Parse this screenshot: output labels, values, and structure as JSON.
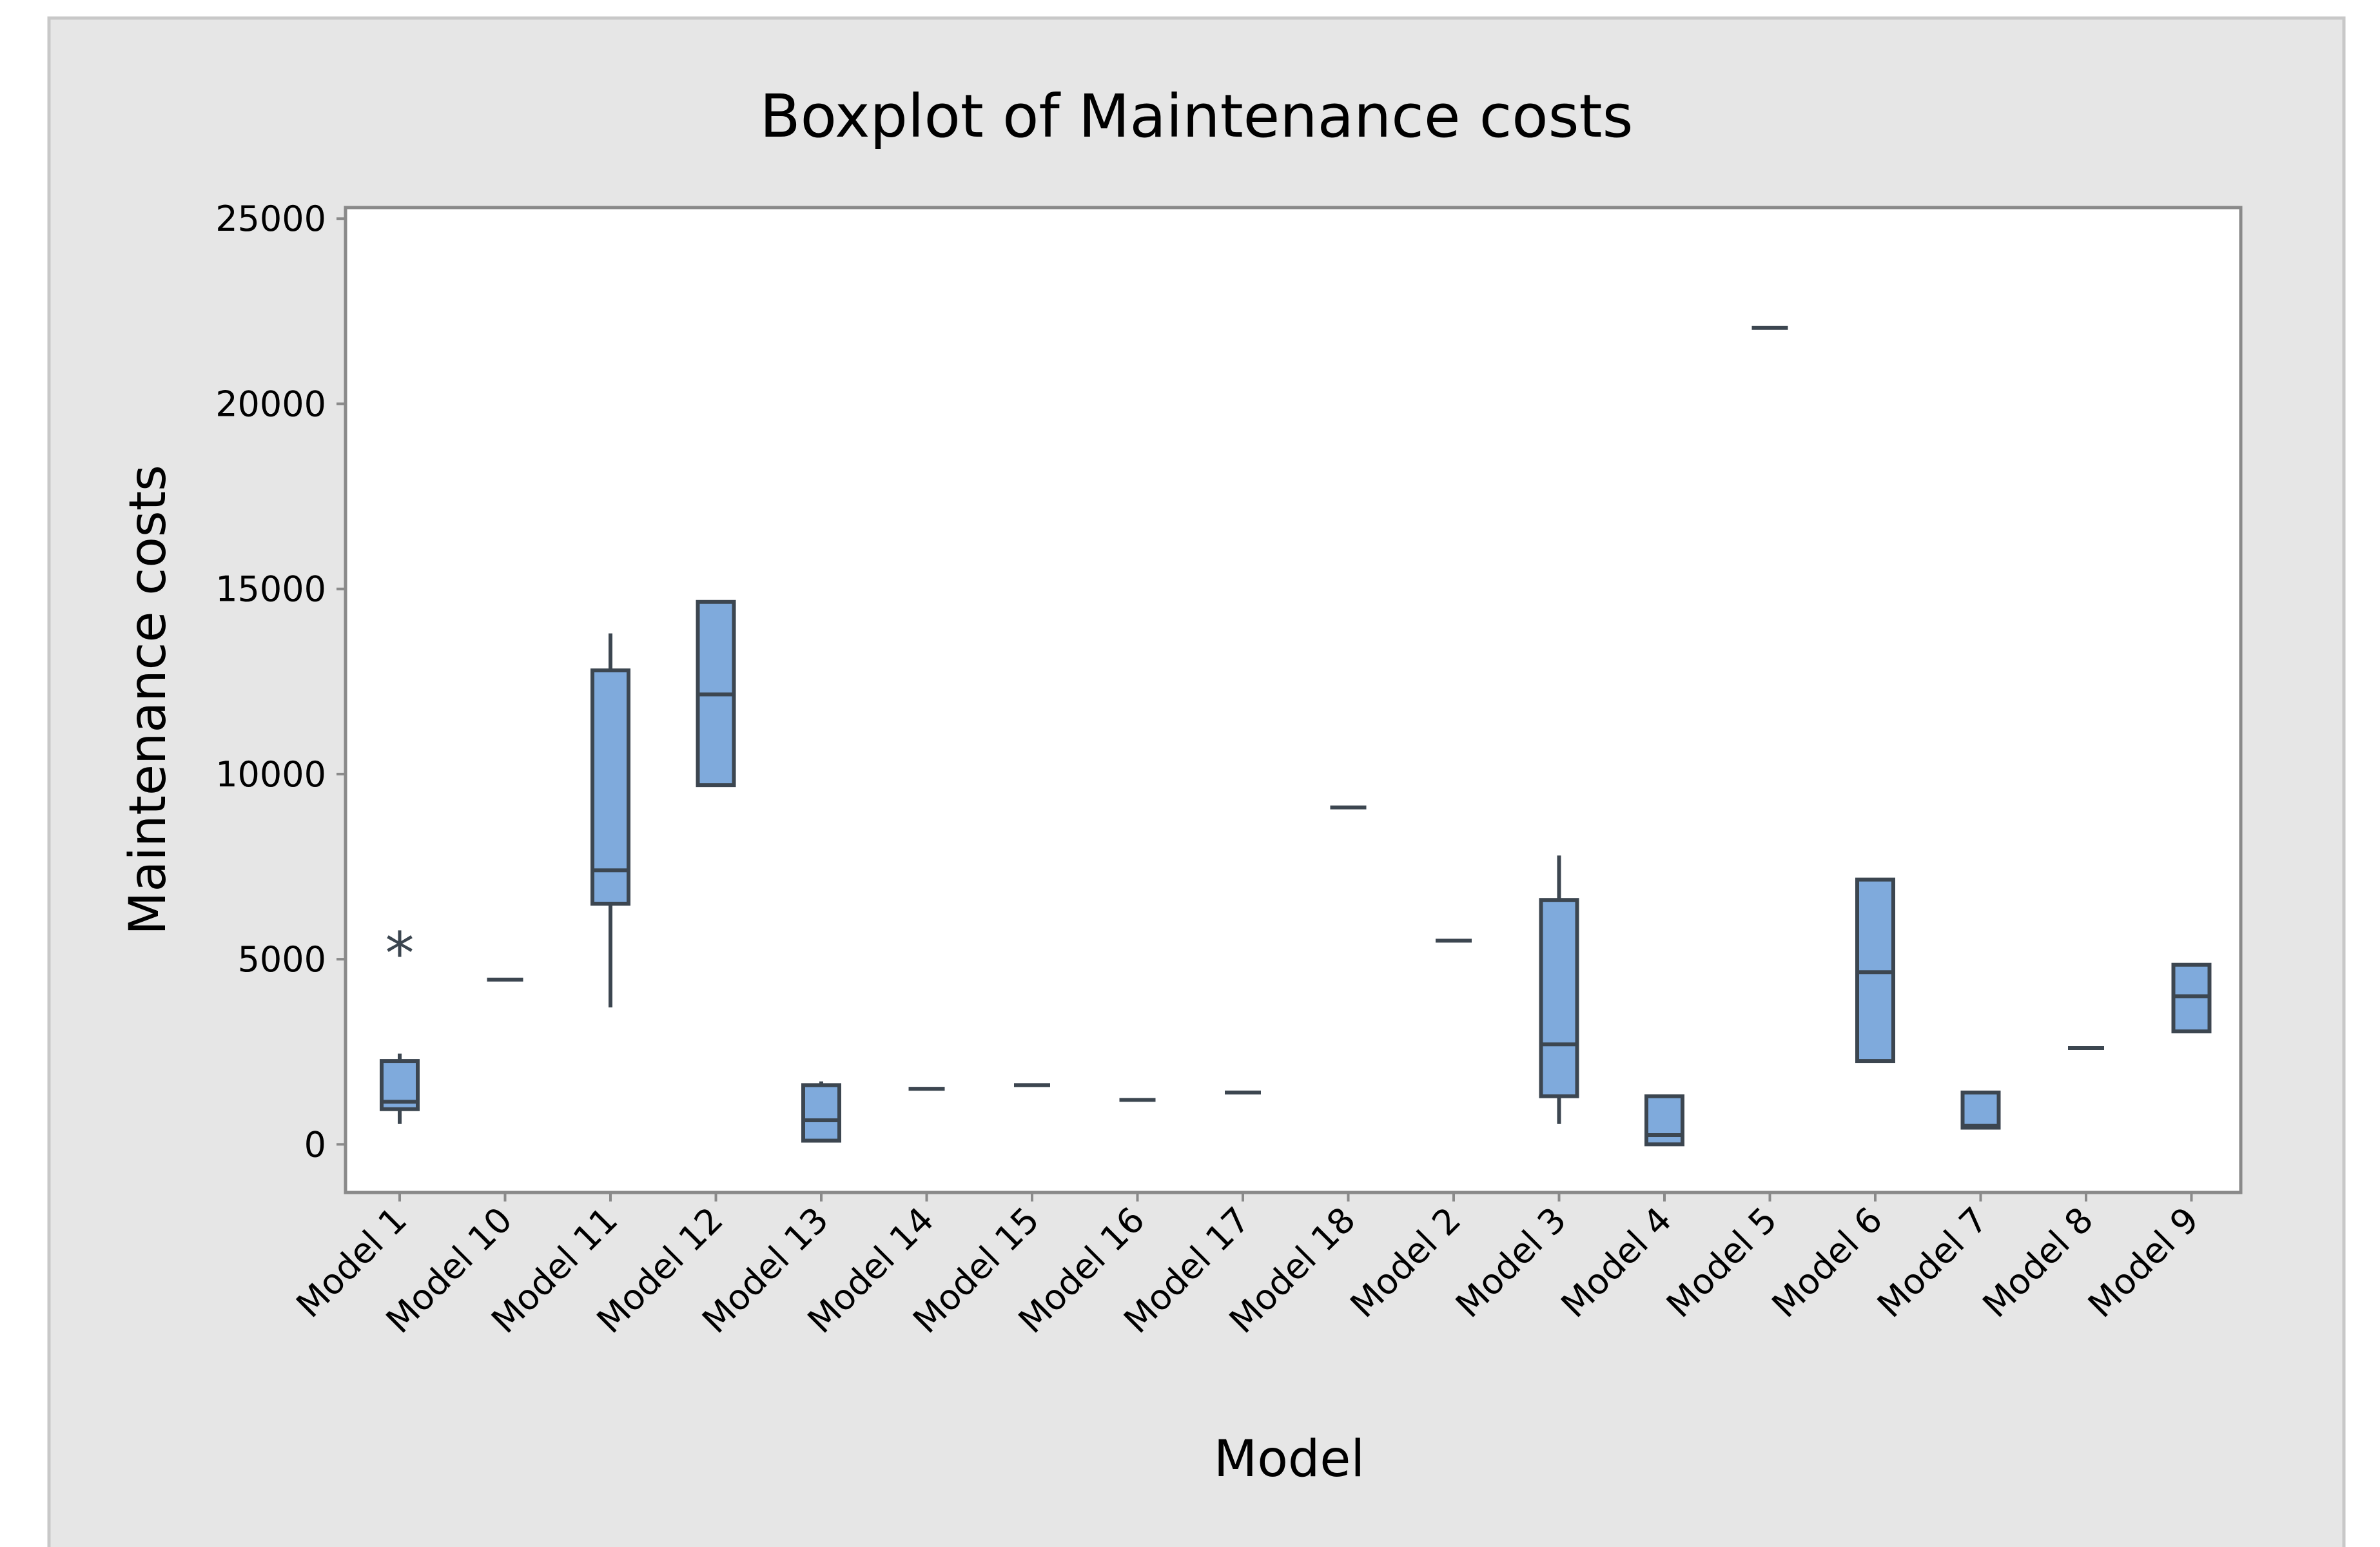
{
  "chart_data": {
    "type": "boxplot",
    "title": "Boxplot of Maintenance costs",
    "xlabel": "Model",
    "ylabel": "Maintenance costs",
    "ylim": [
      -1300,
      25300
    ],
    "yticks": [
      0,
      5000,
      10000,
      15000,
      20000,
      25000
    ],
    "yticklabels": [
      "0",
      "5000",
      "10000",
      "15000",
      "20000",
      "25000"
    ],
    "box_color": "#7faadc",
    "line_color": "#3c4650",
    "categories": [
      "Model 1",
      "Model 10",
      "Model 11",
      "Model 12",
      "Model 13",
      "Model 14",
      "Model 15",
      "Model 16",
      "Model 17",
      "Model 18",
      "Model 2",
      "Model 3",
      "Model 4",
      "Model 5",
      "Model 6",
      "Model 7",
      "Model 8",
      "Model 9"
    ],
    "boxes": [
      {
        "whislo": 550,
        "q1": 950,
        "med": 1150,
        "q3": 2250,
        "whishi": 2450,
        "outliers": [
          5200
        ]
      },
      {
        "whislo": 4450,
        "q1": 4450,
        "med": 4450,
        "q3": 4450,
        "whishi": 4450,
        "outliers": []
      },
      {
        "whislo": 3700,
        "q1": 6500,
        "med": 7400,
        "q3": 12800,
        "whishi": 13800,
        "outliers": []
      },
      {
        "whislo": 9700,
        "q1": 9700,
        "med": 12150,
        "q3": 14650,
        "whishi": 14650,
        "outliers": []
      },
      {
        "whislo": 100,
        "q1": 100,
        "med": 650,
        "q3": 1600,
        "whishi": 1700,
        "outliers": []
      },
      {
        "whislo": 1500,
        "q1": 1500,
        "med": 1500,
        "q3": 1500,
        "whishi": 1500,
        "outliers": []
      },
      {
        "whislo": 1600,
        "q1": 1600,
        "med": 1600,
        "q3": 1600,
        "whishi": 1600,
        "outliers": []
      },
      {
        "whislo": 1200,
        "q1": 1200,
        "med": 1200,
        "q3": 1200,
        "whishi": 1200,
        "outliers": []
      },
      {
        "whislo": 1400,
        "q1": 1400,
        "med": 1400,
        "q3": 1400,
        "whishi": 1400,
        "outliers": []
      },
      {
        "whislo": 9100,
        "q1": 9100,
        "med": 9100,
        "q3": 9100,
        "whishi": 9100,
        "outliers": []
      },
      {
        "whislo": 5500,
        "q1": 5500,
        "med": 5500,
        "q3": 5500,
        "whishi": 5500,
        "outliers": []
      },
      {
        "whislo": 550,
        "q1": 1300,
        "med": 2700,
        "q3": 6600,
        "whishi": 7800,
        "outliers": []
      },
      {
        "whislo": 0,
        "q1": 0,
        "med": 250,
        "q3": 1300,
        "whishi": 1300,
        "outliers": []
      },
      {
        "whislo": 22050,
        "q1": 22050,
        "med": 22050,
        "q3": 22050,
        "whishi": 22050,
        "outliers": []
      },
      {
        "whislo": 2250,
        "q1": 2250,
        "med": 4650,
        "q3": 7150,
        "whishi": 7150,
        "outliers": []
      },
      {
        "whislo": 450,
        "q1": 450,
        "med": 500,
        "q3": 1400,
        "whishi": 1400,
        "outliers": []
      },
      {
        "whislo": 2600,
        "q1": 2600,
        "med": 2600,
        "q3": 2600,
        "whishi": 2600,
        "outliers": []
      },
      {
        "whislo": 3050,
        "q1": 3050,
        "med": 4000,
        "q3": 4850,
        "whishi": 4850,
        "outliers": []
      }
    ]
  }
}
